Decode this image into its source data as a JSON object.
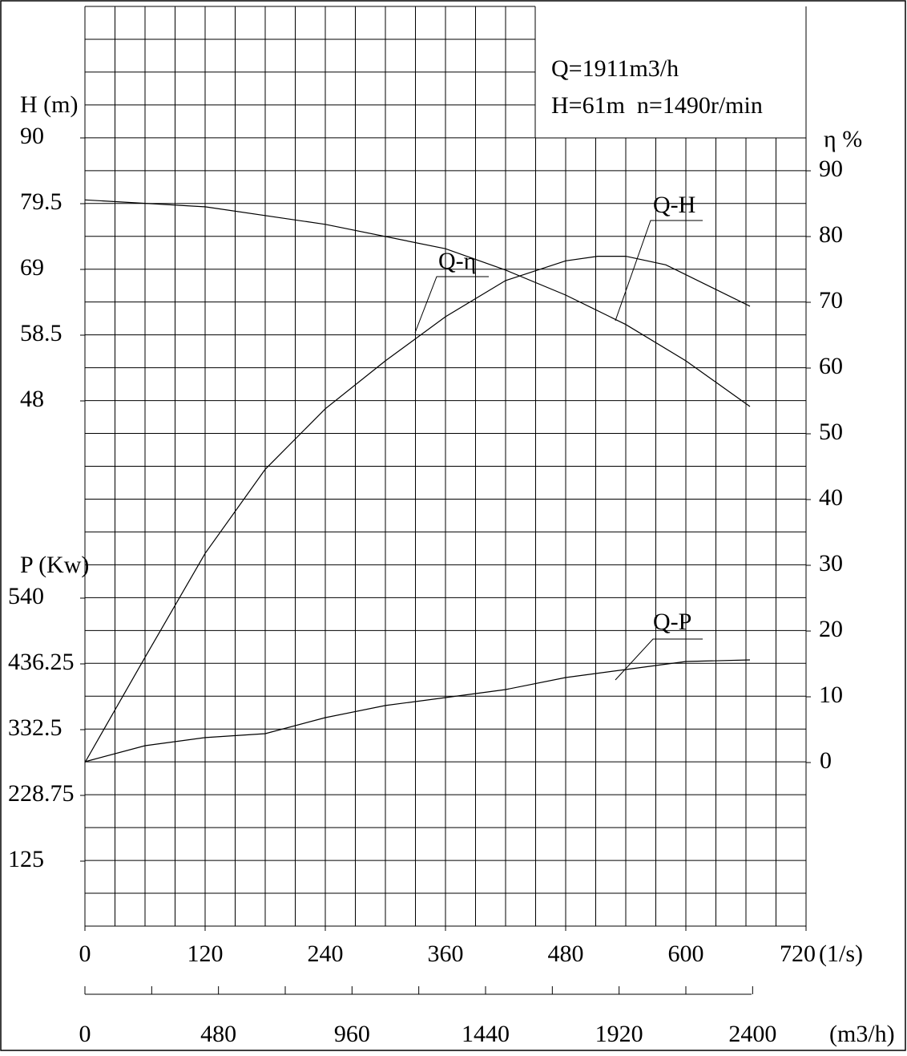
{
  "chart_data": {
    "type": "line",
    "annotations": [
      "Q=1911m3/h",
      "H=61m  n=1490r/min"
    ],
    "xlabel": "(1/s)",
    "x2label": "(m3/h)",
    "ylabel": "H (m)",
    "y2label": "η %",
    "y3label": "P (Kw)",
    "xlim": [
      0,
      720
    ],
    "xticks": [
      0,
      120,
      240,
      360,
      480,
      600,
      720
    ],
    "x2lim": [
      0,
      2592
    ],
    "x2ticks": [
      0,
      480,
      960,
      1440,
      1920,
      2400
    ],
    "x2minor": [
      240,
      720,
      1200,
      1680,
      2160
    ],
    "ylim": [
      -35.875,
      111
    ],
    "yticks": [
      48,
      58.5,
      69,
      79.5,
      90
    ],
    "y2lim": [
      -24.88,
      115
    ],
    "y2ticks": [
      0,
      10,
      20,
      30,
      40,
      50,
      60,
      70,
      80,
      90
    ],
    "y3lim": [
      22.5,
      1473.7
    ],
    "y3ticks": [
      125,
      228.75,
      332.5,
      436.25,
      540
    ],
    "grid": true,
    "series": [
      {
        "name": "Q-H",
        "axis": "y",
        "color": "#000000",
        "x": [
          0,
          120,
          240,
          360,
          420,
          480,
          540,
          600,
          664
        ],
        "values": [
          80.1,
          79.0,
          76.2,
          72.3,
          68.9,
          64.9,
          60.2,
          54.4,
          47.1
        ]
      },
      {
        "name": "Q-η",
        "axis": "y2",
        "color": "#000000",
        "x": [
          0,
          60,
          120,
          180,
          240,
          300,
          360,
          420,
          480,
          512,
          540,
          580,
          664
        ],
        "values": [
          0,
          16,
          31.8,
          44.6,
          53.8,
          61.1,
          67.8,
          73.3,
          76.3,
          77,
          77,
          75.7,
          69.4
        ]
      },
      {
        "name": "Q-P",
        "axis": "y3",
        "color": "#000000",
        "x": [
          0,
          60,
          120,
          180,
          240,
          300,
          360,
          420,
          480,
          540,
          600,
          664
        ],
        "values": [
          281.9,
          307.2,
          319.9,
          326.2,
          351.5,
          370.5,
          383.1,
          395.8,
          414.7,
          427.4,
          440.0,
          442.6
        ]
      }
    ]
  }
}
